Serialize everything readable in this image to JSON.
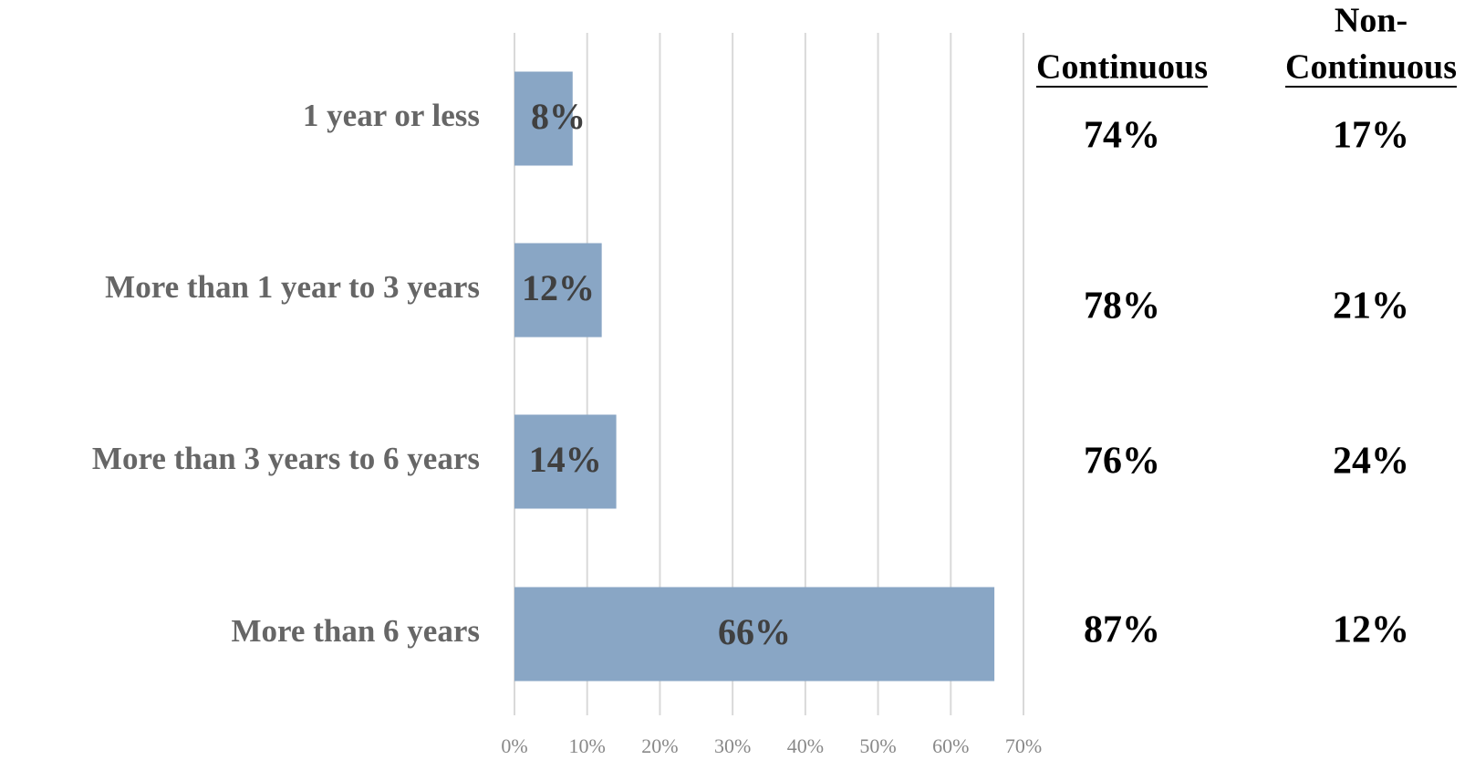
{
  "chart_data": {
    "type": "bar",
    "orientation": "horizontal",
    "categories": [
      "1 year or less",
      "More than 1 year to 3 years",
      "More than 3 years to 6 years",
      "More than 6 years"
    ],
    "values": [
      8,
      12,
      14,
      66
    ],
    "value_labels": [
      "8%",
      "12%",
      "14%",
      "66%"
    ],
    "color": "#89a6c5",
    "xlim": [
      0,
      70
    ],
    "xticks": [
      {
        "value": 0,
        "label": "0%"
      },
      {
        "value": 10,
        "label": "10%"
      },
      {
        "value": 20,
        "label": "20%"
      },
      {
        "value": 30,
        "label": "30%"
      },
      {
        "value": 40,
        "label": "40%"
      },
      {
        "value": 50,
        "label": "50%"
      },
      {
        "value": 60,
        "label": "60%"
      },
      {
        "value": 70,
        "label": "70%"
      }
    ],
    "grid": true
  },
  "table": {
    "headers": [
      [
        "Continuous"
      ],
      [
        "Non-",
        "Continuous"
      ]
    ],
    "rows": [
      [
        "74%",
        "17%"
      ],
      [
        "78%",
        "21%"
      ],
      [
        "76%",
        "24%"
      ],
      [
        "87%",
        "12%"
      ]
    ]
  }
}
